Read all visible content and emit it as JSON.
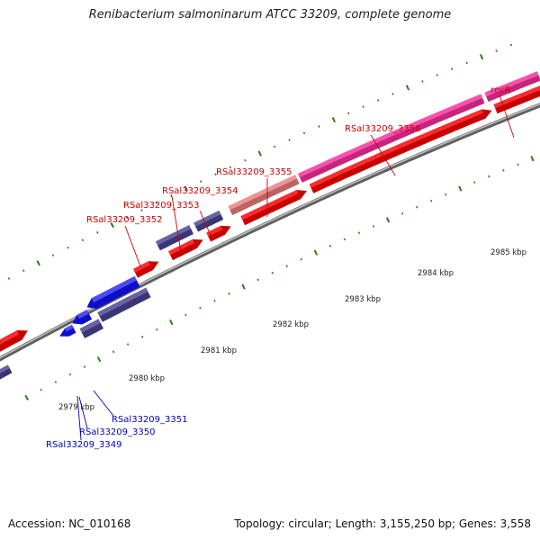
{
  "title": "Renibacterium salmoninarum ATCC 33209, complete genome",
  "footer": {
    "accession": "Accession: NC_010168",
    "summary": "Topology: circular; Length: 3,155,250 bp; Genes: 3,558"
  },
  "colors": {
    "backbone": "#8c8c8c",
    "ticks": "#2e7d1f",
    "forward_gene": "#ff0000",
    "reverse_gene": "#1010ee",
    "operon": "#4a4495",
    "highlight_pink": "#ff2fa0",
    "highlight_salmon": "#ee8080",
    "forward_label": "#cc0000",
    "reverse_label": "#0000bb"
  },
  "kbp_ticks": [
    {
      "label": "2979 kbp"
    },
    {
      "label": "2980 kbp"
    },
    {
      "label": "2981 kbp"
    },
    {
      "label": "2982 kbp"
    },
    {
      "label": "2983 kbp"
    },
    {
      "label": "2984 kbp"
    },
    {
      "label": "2985 kbp"
    }
  ],
  "forward_labels": [
    {
      "text": "RSal33209_3352"
    },
    {
      "text": "RSal33209_3353"
    },
    {
      "text": "RSal33209_3354"
    },
    {
      "text": "RSal33209_3355"
    },
    {
      "text": "RSal33209_3356"
    },
    {
      "text": "recR"
    }
  ],
  "reverse_labels": [
    {
      "text": "RSal33209_3351"
    },
    {
      "text": "RSal33209_3350"
    },
    {
      "text": "RSal33209_3349"
    }
  ]
}
